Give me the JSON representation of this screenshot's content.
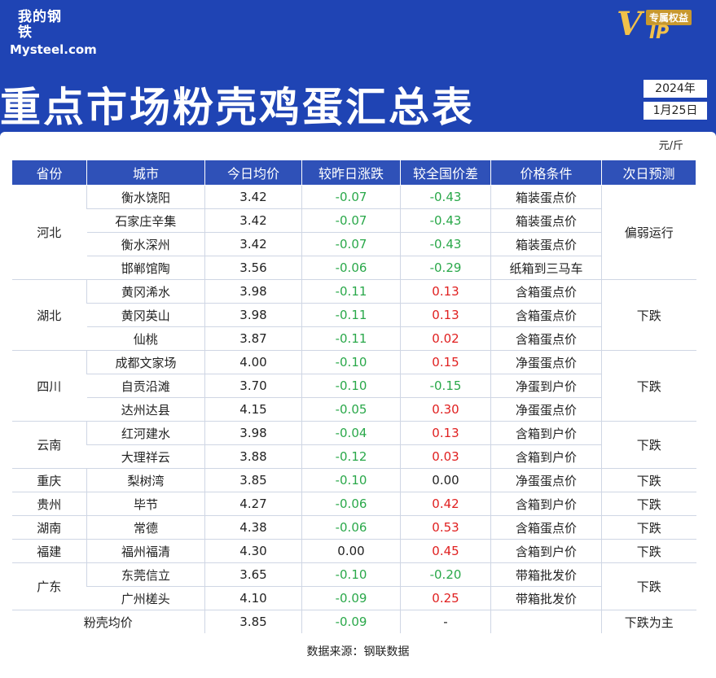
{
  "brand": {
    "logo_cn": "我的钢铁",
    "logo_en": "Mysteel.com",
    "vip_badge": "专属权益",
    "vip_v": "V",
    "vip_ip": "IP"
  },
  "title": "重点市场粉壳鸡蛋汇总表",
  "date": {
    "year": "2024年",
    "day": "1月25日"
  },
  "unit": "元/斤",
  "headers": [
    "省份",
    "城市",
    "今日均价",
    "较昨日涨跌",
    "较全国价差",
    "价格条件",
    "次日预测"
  ],
  "groups": [
    {
      "province": "河北",
      "forecast": "偏弱运行",
      "rows": [
        {
          "city": "衡水饶阳",
          "price": "3.42",
          "change": "-0.07",
          "diff": "-0.43",
          "diff_color": "#2aa84a",
          "cond": "箱装蛋点价"
        },
        {
          "city": "石家庄辛集",
          "price": "3.42",
          "change": "-0.07",
          "diff": "-0.43",
          "diff_color": "#2aa84a",
          "cond": "箱装蛋点价"
        },
        {
          "city": "衡水深州",
          "price": "3.42",
          "change": "-0.07",
          "diff": "-0.43",
          "diff_color": "#2aa84a",
          "cond": "箱装蛋点价"
        },
        {
          "city": "邯郸馆陶",
          "price": "3.56",
          "change": "-0.06",
          "diff": "-0.29",
          "diff_color": "#2aa84a",
          "cond": "纸箱到三马车"
        }
      ]
    },
    {
      "province": "湖北",
      "forecast": "下跌",
      "rows": [
        {
          "city": "黄冈浠水",
          "price": "3.98",
          "change": "-0.11",
          "diff": "0.13",
          "diff_color": "#e02020",
          "cond": "含箱蛋点价"
        },
        {
          "city": "黄冈英山",
          "price": "3.98",
          "change": "-0.11",
          "diff": "0.13",
          "diff_color": "#e02020",
          "cond": "含箱蛋点价"
        },
        {
          "city": "仙桃",
          "price": "3.87",
          "change": "-0.11",
          "diff": "0.02",
          "diff_color": "#e02020",
          "cond": "含箱蛋点价"
        }
      ]
    },
    {
      "province": "四川",
      "forecast": "下跌",
      "rows": [
        {
          "city": "成都文家场",
          "price": "4.00",
          "change": "-0.10",
          "diff": "0.15",
          "diff_color": "#e02020",
          "cond": "净蛋蛋点价"
        },
        {
          "city": "自贡沿滩",
          "price": "3.70",
          "change": "-0.10",
          "diff": "-0.15",
          "diff_color": "#2aa84a",
          "cond": "净蛋到户价"
        },
        {
          "city": "达州达县",
          "price": "4.15",
          "change": "-0.05",
          "diff": "0.30",
          "diff_color": "#e02020",
          "cond": "净蛋蛋点价"
        }
      ]
    },
    {
      "province": "云南",
      "forecast": "下跌",
      "rows": [
        {
          "city": "红河建水",
          "price": "3.98",
          "change": "-0.04",
          "diff": "0.13",
          "diff_color": "#e02020",
          "cond": "含箱到户价"
        },
        {
          "city": "大理祥云",
          "price": "3.88",
          "change": "-0.12",
          "diff": "0.03",
          "diff_color": "#e02020",
          "cond": "含箱到户价"
        }
      ]
    },
    {
      "province": "重庆",
      "forecast": "下跌",
      "rows": [
        {
          "city": "梨树湾",
          "price": "3.85",
          "change": "-0.10",
          "diff": "0.00",
          "diff_color": "#222222",
          "cond": "净蛋蛋点价"
        }
      ]
    },
    {
      "province": "贵州",
      "forecast": "下跌",
      "rows": [
        {
          "city": "毕节",
          "price": "4.27",
          "change": "-0.06",
          "diff": "0.42",
          "diff_color": "#e02020",
          "cond": "含箱到户价"
        }
      ]
    },
    {
      "province": "湖南",
      "forecast": "下跌",
      "rows": [
        {
          "city": "常德",
          "price": "4.38",
          "change": "-0.06",
          "diff": "0.53",
          "diff_color": "#e02020",
          "cond": "含箱蛋点价"
        }
      ]
    },
    {
      "province": "福建",
      "forecast": "下跌",
      "rows": [
        {
          "city": "福州福清",
          "price": "4.30",
          "change": "0.00",
          "change_color": "#222222",
          "diff": "0.45",
          "diff_color": "#e02020",
          "cond": "含箱到户价"
        }
      ]
    },
    {
      "province": "广东",
      "forecast": "下跌",
      "rows": [
        {
          "city": "东莞信立",
          "price": "3.65",
          "change": "-0.10",
          "diff": "-0.20",
          "diff_color": "#2aa84a",
          "cond": "带箱批发价"
        },
        {
          "city": "广州槎头",
          "price": "4.10",
          "change": "-0.09",
          "diff": "0.25",
          "diff_color": "#e02020",
          "cond": "带箱批发价"
        }
      ]
    }
  ],
  "average": {
    "label": "粉壳均价",
    "price": "3.85",
    "change": "-0.09",
    "diff": "-",
    "cond": "",
    "forecast": "下跌为主"
  },
  "source": "数据来源：钢联数据"
}
